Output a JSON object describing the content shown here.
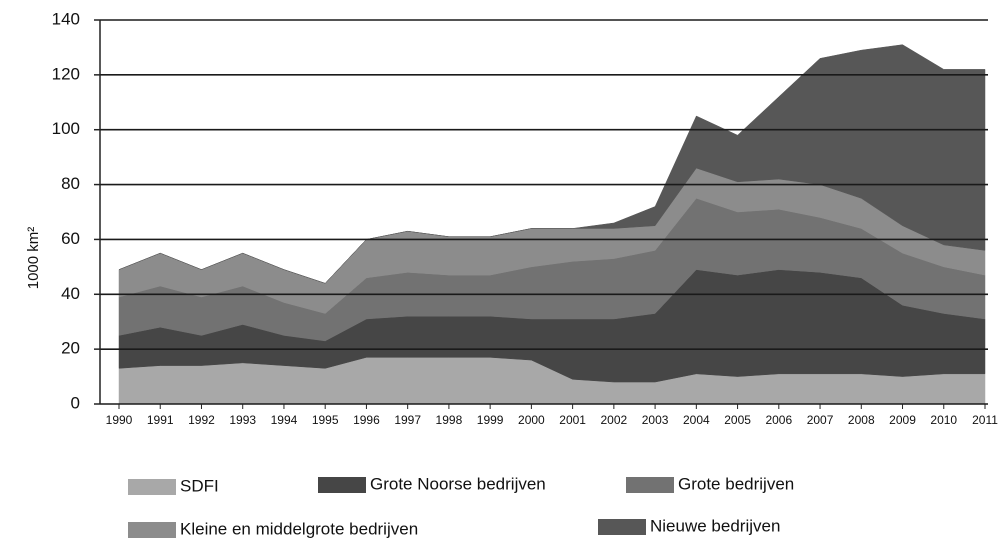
{
  "chart_data": {
    "type": "stacked_area",
    "ylabel": "1000 km²",
    "categories": [
      "1990",
      "1991",
      "1992",
      "1993",
      "1994",
      "1995",
      "1996",
      "1997",
      "1998",
      "1999",
      "2000",
      "2001",
      "2002",
      "2003",
      "2004",
      "2005",
      "2006",
      "2007",
      "2008",
      "2009",
      "2010",
      "2011"
    ],
    "series": [
      {
        "name": "SDFI",
        "color": "#a8a8a8",
        "values": [
          13,
          14,
          14,
          15,
          14,
          13,
          17,
          17,
          17,
          17,
          16,
          9,
          8,
          8,
          11,
          10,
          11,
          11,
          11,
          10,
          11,
          11
        ]
      },
      {
        "name": "Grote Noorse bedrijven",
        "color": "#464646",
        "values": [
          12,
          14,
          11,
          14,
          11,
          10,
          14,
          15,
          15,
          15,
          15,
          22,
          23,
          25,
          38,
          37,
          38,
          37,
          35,
          26,
          22,
          20
        ]
      },
      {
        "name": "Grote bedrijven",
        "color": "#727272",
        "values": [
          14,
          15,
          14,
          14,
          12,
          10,
          15,
          16,
          15,
          15,
          19,
          21,
          22,
          23,
          26,
          23,
          22,
          20,
          18,
          19,
          17,
          16
        ]
      },
      {
        "name": "Kleine en middelgrote bedrijven",
        "color": "#8c8c8c",
        "values": [
          10,
          12,
          10,
          12,
          12,
          11,
          14,
          15,
          14,
          14,
          14,
          12,
          11,
          9,
          11,
          11,
          11,
          12,
          11,
          10,
          8,
          9
        ]
      },
      {
        "name": "Nieuwe bedrijven",
        "color": "#575757",
        "values": [
          0,
          0,
          0,
          0,
          0,
          0,
          0,
          0,
          0,
          0,
          0,
          0,
          2,
          7,
          19,
          17,
          30,
          46,
          54,
          66,
          64,
          66
        ]
      }
    ],
    "ylim": [
      0,
      140
    ],
    "yticks": [
      0,
      20,
      40,
      60,
      80,
      100,
      120,
      140
    ],
    "grid": true
  }
}
